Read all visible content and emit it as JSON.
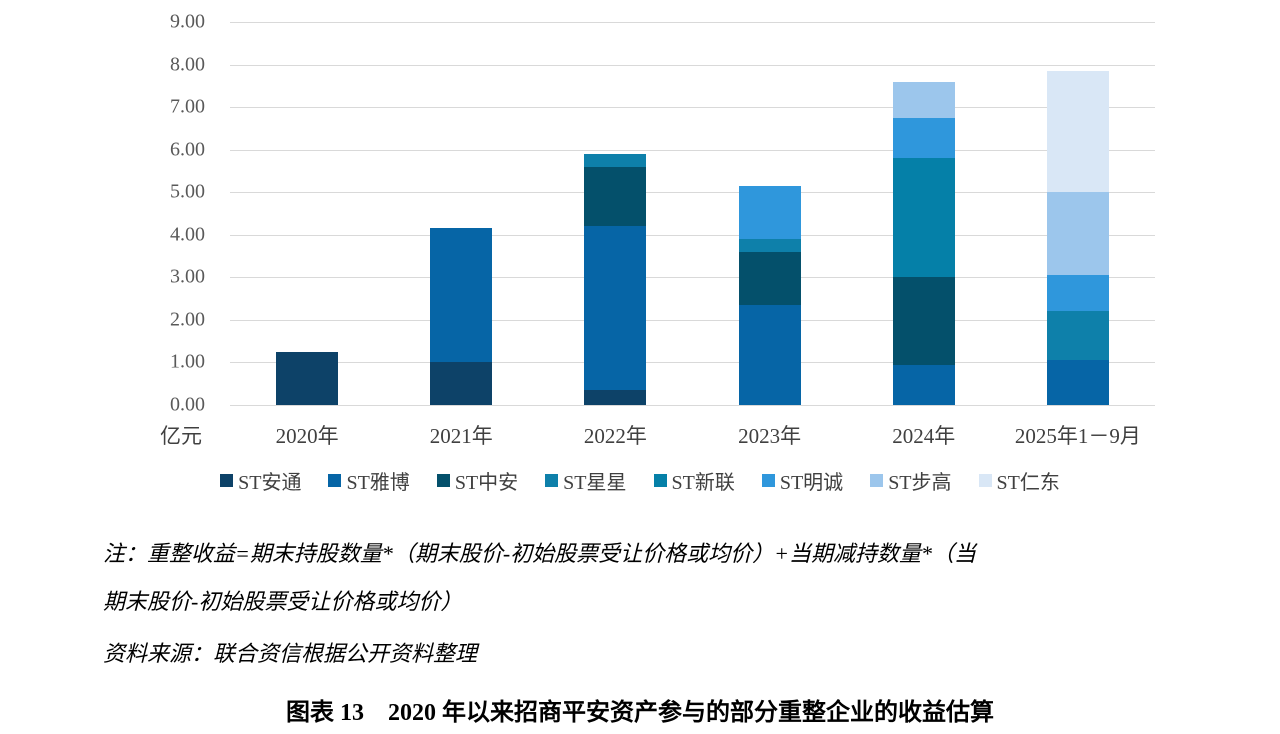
{
  "unit_label": "亿元",
  "notes": {
    "line1": "注：重整收益=期末持股数量*（期末股价-初始股票受让价格或均价）+当期减持数量*（当",
    "line2": "期末股价-初始股票受让价格或均价）",
    "source": "资料来源：联合资信根据公开资料整理"
  },
  "title": "图表 13　2020 年以来招商平安资产参与的部分重整企业的收益估算",
  "chart_data": {
    "type": "bar",
    "stacked": true,
    "title": "",
    "xlabel": "",
    "ylabel": "亿元",
    "ylim": [
      0,
      9
    ],
    "ytick_step": 1,
    "ytick_decimals": 2,
    "grid": true,
    "legend_position": "bottom",
    "categories": [
      "2020年",
      "2021年",
      "2022年",
      "2023年",
      "2024年",
      "2025年1－9月"
    ],
    "series": [
      {
        "name": "ST安通",
        "color": "#0d4268",
        "values": [
          1.25,
          1.0,
          0.35,
          0,
          0,
          0
        ]
      },
      {
        "name": "ST雅博",
        "color": "#0665a6",
        "values": [
          0,
          3.15,
          3.85,
          2.35,
          0.95,
          1.05
        ]
      },
      {
        "name": "ST中安",
        "color": "#04506b",
        "values": [
          0,
          0,
          1.4,
          1.25,
          2.05,
          0
        ]
      },
      {
        "name": "ST星星",
        "color": "#0e80aa",
        "values": [
          0,
          0,
          0.3,
          0.3,
          0,
          1.15
        ]
      },
      {
        "name": "ST新联",
        "color": "#0580a8",
        "values": [
          0,
          0,
          0,
          0,
          2.8,
          0
        ]
      },
      {
        "name": "ST明诚",
        "color": "#2f97dc",
        "values": [
          0,
          0,
          0,
          1.25,
          0.95,
          0.85
        ]
      },
      {
        "name": "ST步高",
        "color": "#9cc6ec",
        "values": [
          0,
          0,
          0,
          0,
          0.85,
          1.95
        ]
      },
      {
        "name": "ST仁东",
        "color": "#d9e7f6",
        "values": [
          0,
          0,
          0,
          0,
          0,
          2.85
        ]
      }
    ],
    "totals": [
      1.25,
      4.15,
      5.9,
      5.15,
      7.6,
      7.85
    ]
  }
}
